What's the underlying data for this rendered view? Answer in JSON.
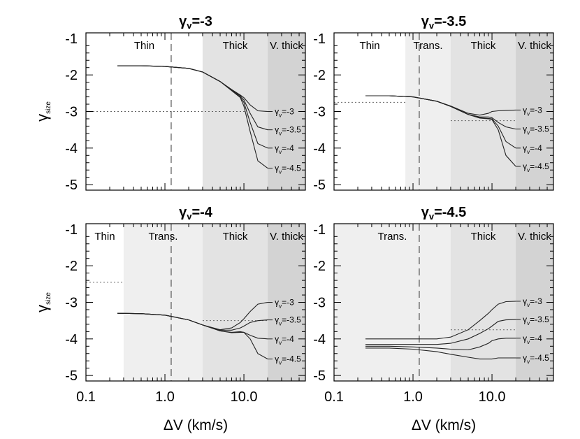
{
  "chart_data": [
    {
      "type": "line",
      "title": "γᵥ=-3",
      "xlabel": "",
      "ylabel": "γsize",
      "xscale": "log",
      "xlim": [
        0.1,
        60
      ],
      "ylim": [
        -5.15,
        -0.85
      ],
      "yticks": [
        -1,
        -2,
        -3,
        -4,
        -5
      ],
      "regions": [
        {
          "label": "Thin",
          "x0": 0.1,
          "x1": 3.0,
          "shade": "#ffffff"
        },
        {
          "label": "Thick",
          "x0": 3.0,
          "x1": 20.0,
          "shade": "#e3e3e3"
        },
        {
          "label": "V. thick",
          "x0": 20.0,
          "x1": 60,
          "shade": "#d3d3d3"
        }
      ],
      "vline_x": 1.2,
      "hline": {
        "y": -3.0,
        "x0": 0.1,
        "x1": 11.0
      },
      "series": [
        {
          "name": "γᵥ=-3",
          "x": [
            0.25,
            0.5,
            1.0,
            2.0,
            3.0,
            5.0,
            7.0,
            9.0,
            10.0,
            12.0,
            15.0,
            20.0
          ],
          "y": [
            -1.75,
            -1.75,
            -1.77,
            -1.82,
            -1.92,
            -2.18,
            -2.4,
            -2.55,
            -2.62,
            -2.82,
            -2.98,
            -3.0
          ]
        },
        {
          "name": "γᵥ=-3.5",
          "x": [
            0.25,
            0.5,
            1.0,
            2.0,
            3.0,
            5.0,
            7.0,
            9.0,
            10.0,
            12.0,
            15.0,
            20.0
          ],
          "y": [
            -1.75,
            -1.75,
            -1.77,
            -1.82,
            -1.92,
            -2.18,
            -2.41,
            -2.57,
            -2.68,
            -3.05,
            -3.42,
            -3.5
          ]
        },
        {
          "name": "γᵥ=-4",
          "x": [
            0.25,
            0.5,
            1.0,
            2.0,
            3.0,
            5.0,
            7.0,
            9.0,
            10.0,
            12.0,
            15.0,
            20.0
          ],
          "y": [
            -1.75,
            -1.75,
            -1.77,
            -1.82,
            -1.92,
            -2.18,
            -2.42,
            -2.6,
            -2.75,
            -3.3,
            -3.88,
            -4.0
          ]
        },
        {
          "name": "γᵥ=-4.5",
          "x": [
            0.25,
            0.5,
            1.0,
            2.0,
            3.0,
            5.0,
            7.0,
            9.0,
            10.0,
            12.0,
            15.0,
            20.0
          ],
          "y": [
            -1.75,
            -1.75,
            -1.77,
            -1.82,
            -1.92,
            -2.18,
            -2.43,
            -2.62,
            -2.85,
            -3.55,
            -4.35,
            -4.55
          ]
        }
      ]
    },
    {
      "type": "line",
      "title": "γᵥ=-3.5",
      "xlabel": "",
      "ylabel": "",
      "xscale": "log",
      "xlim": [
        0.1,
        60
      ],
      "ylim": [
        -5.15,
        -0.85
      ],
      "yticks": [
        -1,
        -2,
        -3,
        -4,
        -5
      ],
      "regions": [
        {
          "label": "Thin",
          "x0": 0.1,
          "x1": 0.8,
          "shade": "#ffffff"
        },
        {
          "label": "Trans.",
          "x0": 0.8,
          "x1": 3.0,
          "shade": "#efefef"
        },
        {
          "label": "Thick",
          "x0": 3.0,
          "x1": 20.0,
          "shade": "#e3e3e3"
        },
        {
          "label": "V. thick",
          "x0": 20.0,
          "x1": 60,
          "shade": "#d3d3d3"
        }
      ],
      "vline_x": 1.2,
      "hline_segments": [
        {
          "y": -2.75,
          "x0": 0.1,
          "x1": 0.8
        },
        {
          "y": -3.25,
          "x0": 3.0,
          "x1": 20.0
        }
      ],
      "series": [
        {
          "name": "γᵥ=-3",
          "x": [
            0.25,
            0.5,
            1.0,
            2.0,
            3.0,
            5.0,
            7.0,
            9.0,
            10.0,
            12.0,
            15.0,
            20.0
          ],
          "y": [
            -2.57,
            -2.57,
            -2.6,
            -2.72,
            -2.85,
            -3.05,
            -3.1,
            -3.05,
            -3.0,
            -2.98,
            -2.97,
            -2.96
          ]
        },
        {
          "name": "γᵥ=-3.5",
          "x": [
            0.25,
            0.5,
            1.0,
            2.0,
            3.0,
            5.0,
            7.0,
            9.0,
            10.0,
            12.0,
            15.0,
            20.0
          ],
          "y": [
            -2.57,
            -2.57,
            -2.6,
            -2.72,
            -2.86,
            -3.08,
            -3.15,
            -3.15,
            -3.17,
            -3.3,
            -3.42,
            -3.48
          ]
        },
        {
          "name": "γᵥ=-4",
          "x": [
            0.25,
            0.5,
            1.0,
            2.0,
            3.0,
            5.0,
            7.0,
            9.0,
            10.0,
            12.0,
            15.0,
            20.0
          ],
          "y": [
            -2.57,
            -2.57,
            -2.6,
            -2.72,
            -2.86,
            -3.08,
            -3.17,
            -3.19,
            -3.2,
            -3.4,
            -3.82,
            -4.0
          ]
        },
        {
          "name": "γᵥ=-4.5",
          "x": [
            0.25,
            0.5,
            1.0,
            2.0,
            3.0,
            5.0,
            7.0,
            9.0,
            10.0,
            12.0,
            15.0,
            20.0
          ],
          "y": [
            -2.57,
            -2.57,
            -2.6,
            -2.72,
            -2.86,
            -3.08,
            -3.18,
            -3.2,
            -3.22,
            -3.5,
            -4.2,
            -4.5
          ]
        }
      ]
    },
    {
      "type": "line",
      "title": "γᵥ=-4",
      "xlabel": "ΔV (km/s)",
      "ylabel": "γsize",
      "xscale": "log",
      "xlim": [
        0.1,
        60
      ],
      "ylim": [
        -5.15,
        -0.85
      ],
      "yticks": [
        -1,
        -2,
        -3,
        -4,
        -5
      ],
      "xticks": [
        0.1,
        1.0,
        10.0
      ],
      "xticklabels": [
        "0.1",
        "1.0",
        "10.0"
      ],
      "regions": [
        {
          "label": "Thin",
          "x0": 0.1,
          "x1": 0.3,
          "shade": "#ffffff"
        },
        {
          "label": "Trans.",
          "x0": 0.3,
          "x1": 3.0,
          "shade": "#efefef"
        },
        {
          "label": "Thick",
          "x0": 3.0,
          "x1": 20.0,
          "shade": "#e3e3e3"
        },
        {
          "label": "V. thick",
          "x0": 20.0,
          "x1": 60,
          "shade": "#d3d3d3"
        }
      ],
      "vline_x": 1.2,
      "hline_segments": [
        {
          "y": -2.45,
          "x0": 0.1,
          "x1": 0.3
        },
        {
          "y": -3.5,
          "x0": 3.0,
          "x1": 20.0
        }
      ],
      "series": [
        {
          "name": "γᵥ=-3",
          "x": [
            0.25,
            0.5,
            1.0,
            2.0,
            3.0,
            5.0,
            7.0,
            9.0,
            10.0,
            12.0,
            15.0,
            20.0
          ],
          "y": [
            -3.3,
            -3.31,
            -3.35,
            -3.48,
            -3.62,
            -3.75,
            -3.7,
            -3.55,
            -3.45,
            -3.25,
            -3.05,
            -3.0
          ]
        },
        {
          "name": "γᵥ=-3.5",
          "x": [
            0.25,
            0.5,
            1.0,
            2.0,
            3.0,
            5.0,
            7.0,
            9.0,
            10.0,
            12.0,
            15.0,
            20.0
          ],
          "y": [
            -3.3,
            -3.31,
            -3.35,
            -3.48,
            -3.62,
            -3.76,
            -3.76,
            -3.7,
            -3.65,
            -3.55,
            -3.5,
            -3.48
          ]
        },
        {
          "name": "γᵥ=-4",
          "x": [
            0.25,
            0.5,
            1.0,
            2.0,
            3.0,
            5.0,
            7.0,
            9.0,
            10.0,
            12.0,
            15.0,
            20.0
          ],
          "y": [
            -3.3,
            -3.31,
            -3.35,
            -3.48,
            -3.62,
            -3.78,
            -3.82,
            -3.8,
            -3.82,
            -3.9,
            -3.98,
            -4.0
          ]
        },
        {
          "name": "γᵥ=-4.5",
          "x": [
            0.25,
            0.5,
            1.0,
            2.0,
            3.0,
            5.0,
            7.0,
            9.0,
            10.0,
            12.0,
            15.0,
            20.0
          ],
          "y": [
            -3.3,
            -3.31,
            -3.35,
            -3.48,
            -3.62,
            -3.78,
            -3.83,
            -3.82,
            -3.82,
            -4.0,
            -4.4,
            -4.55
          ]
        }
      ]
    },
    {
      "type": "line",
      "title": "γᵥ=-4.5",
      "xlabel": "ΔV (km/s)",
      "ylabel": "",
      "xscale": "log",
      "xlim": [
        0.1,
        60
      ],
      "ylim": [
        -5.15,
        -0.85
      ],
      "yticks": [
        -1,
        -2,
        -3,
        -4,
        -5
      ],
      "xticks": [
        0.1,
        1.0,
        10.0
      ],
      "xticklabels": [
        "0.1",
        "1.0",
        "10.0"
      ],
      "regions": [
        {
          "label": "Trans.",
          "x0": 0.1,
          "x1": 3.0,
          "shade": "#efefef"
        },
        {
          "label": "Thick",
          "x0": 3.0,
          "x1": 20.0,
          "shade": "#e3e3e3"
        },
        {
          "label": "V. thick",
          "x0": 20.0,
          "x1": 60,
          "shade": "#d3d3d3"
        }
      ],
      "vline_x": 1.2,
      "hline_segments": [
        {
          "y": -3.75,
          "x0": 3.0,
          "x1": 20.0
        }
      ],
      "series": [
        {
          "name": "γᵥ=-3",
          "x": [
            0.25,
            0.5,
            1.0,
            2.0,
            3.0,
            5.0,
            7.0,
            9.0,
            10.0,
            12.0,
            15.0,
            20.0
          ],
          "y": [
            -4.0,
            -4.0,
            -4.0,
            -4.0,
            -3.95,
            -3.75,
            -3.5,
            -3.3,
            -3.2,
            -3.05,
            -2.98,
            -2.97
          ]
        },
        {
          "name": "γᵥ=-3.5",
          "x": [
            0.25,
            0.5,
            1.0,
            2.0,
            3.0,
            5.0,
            7.0,
            9.0,
            10.0,
            12.0,
            15.0,
            20.0
          ],
          "y": [
            -4.15,
            -4.15,
            -4.15,
            -4.15,
            -4.12,
            -4.0,
            -3.85,
            -3.72,
            -3.65,
            -3.52,
            -3.48,
            -3.47
          ]
        },
        {
          "name": "γᵥ=-4",
          "x": [
            0.25,
            0.5,
            1.0,
            2.0,
            3.0,
            5.0,
            7.0,
            9.0,
            10.0,
            12.0,
            15.0,
            20.0
          ],
          "y": [
            -4.2,
            -4.2,
            -4.22,
            -4.25,
            -4.28,
            -4.3,
            -4.22,
            -4.12,
            -4.05,
            -4.0,
            -3.98,
            -3.98
          ]
        },
        {
          "name": "γᵥ=-4.5",
          "x": [
            0.25,
            0.5,
            1.0,
            2.0,
            3.0,
            5.0,
            7.0,
            9.0,
            10.0,
            12.0,
            15.0,
            20.0
          ],
          "y": [
            -4.25,
            -4.25,
            -4.28,
            -4.35,
            -4.42,
            -4.5,
            -4.55,
            -4.55,
            -4.55,
            -4.52,
            -4.52,
            -4.52
          ]
        }
      ]
    }
  ]
}
